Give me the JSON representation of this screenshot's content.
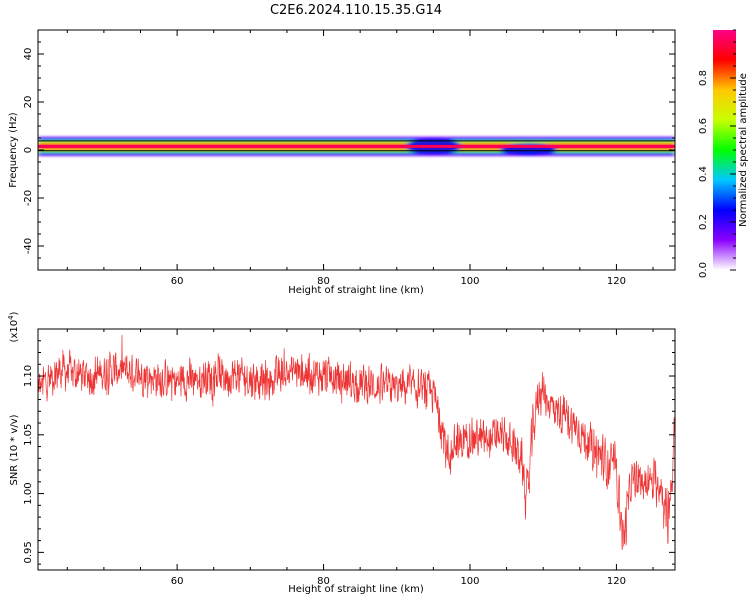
{
  "title": "C2E6.2024.110.15.35.G14",
  "chart_data": [
    {
      "type": "heatmap",
      "xlabel": "Height of straight line (km)",
      "ylabel": "Frequency (Hz)",
      "xlim": [
        41,
        128
      ],
      "ylim": [
        -50,
        50
      ],
      "xticks": [
        60,
        80,
        100,
        120
      ],
      "yticks": [
        -40,
        -20,
        0,
        20,
        40
      ],
      "grid": false,
      "colorbar": {
        "label": "Normalized spectral amplitude",
        "range": [
          0,
          1
        ],
        "ticks": [
          "0.0",
          "0.2",
          "0.4",
          "0.6",
          "0.8"
        ],
        "colormap": [
          "#ffffff",
          "#8a00ff",
          "#0000ff",
          "#00c8ff",
          "#00ff00",
          "#c8ff00",
          "#ffc800",
          "#ff0000",
          "#ff0088"
        ]
      },
      "band": {
        "center_frequency": 1.5,
        "peak_halfwidth": 1.5,
        "max_halfwidth": 4,
        "peak_amplitude": 0.95,
        "features": [
          {
            "height": 95,
            "frequency_low": -1,
            "frequency_high": 4,
            "amplitude": 0.25
          },
          {
            "height": 108,
            "frequency_low": -1.5,
            "frequency_high": 2,
            "amplitude": 0.25
          }
        ]
      }
    },
    {
      "type": "line",
      "xlabel": "Height of straight line (km)",
      "ylabel": "SNR (10 * v/v)",
      "y_multiplier": "(x10",
      "y_multiplier_exp": "4",
      "y_multiplier_close": ")",
      "xlim": [
        41,
        128
      ],
      "ylim": [
        0.935,
        1.14
      ],
      "xticks": [
        60,
        80,
        100,
        120
      ],
      "yticks": [
        "0.95",
        "1.00",
        "1.05",
        "1.10"
      ],
      "line_color": "#ee3333",
      "series": [
        {
          "x": [
            41,
            44,
            48,
            52,
            56,
            60,
            64,
            68,
            72,
            76,
            80,
            84,
            88,
            92,
            95,
            96,
            97,
            98,
            100,
            102,
            104,
            106,
            107,
            107.8,
            108.5,
            109.5,
            110.5,
            112,
            114,
            116,
            118,
            120,
            121,
            122,
            124,
            126,
            127,
            128
          ],
          "mean": [
            1.09,
            1.105,
            1.1,
            1.105,
            1.1,
            1.095,
            1.1,
            1.1,
            1.095,
            1.105,
            1.1,
            1.095,
            1.09,
            1.09,
            1.085,
            1.06,
            1.03,
            1.04,
            1.05,
            1.045,
            1.05,
            1.04,
            1.03,
            0.99,
            1.05,
            1.09,
            1.08,
            1.07,
            1.06,
            1.045,
            1.03,
            1.02,
            0.96,
            1.01,
            1.01,
            1.01,
            0.975,
            1.05
          ],
          "amplitude": [
            0.02,
            0.02,
            0.02,
            0.02,
            0.02,
            0.02,
            0.02,
            0.02,
            0.02,
            0.02,
            0.02,
            0.02,
            0.02,
            0.02,
            0.02,
            0.02,
            0.025,
            0.022,
            0.02,
            0.02,
            0.02,
            0.02,
            0.022,
            0.03,
            0.025,
            0.025,
            0.02,
            0.02,
            0.02,
            0.02,
            0.025,
            0.025,
            0.03,
            0.02,
            0.02,
            0.025,
            0.03,
            0.03
          ]
        }
      ]
    }
  ]
}
